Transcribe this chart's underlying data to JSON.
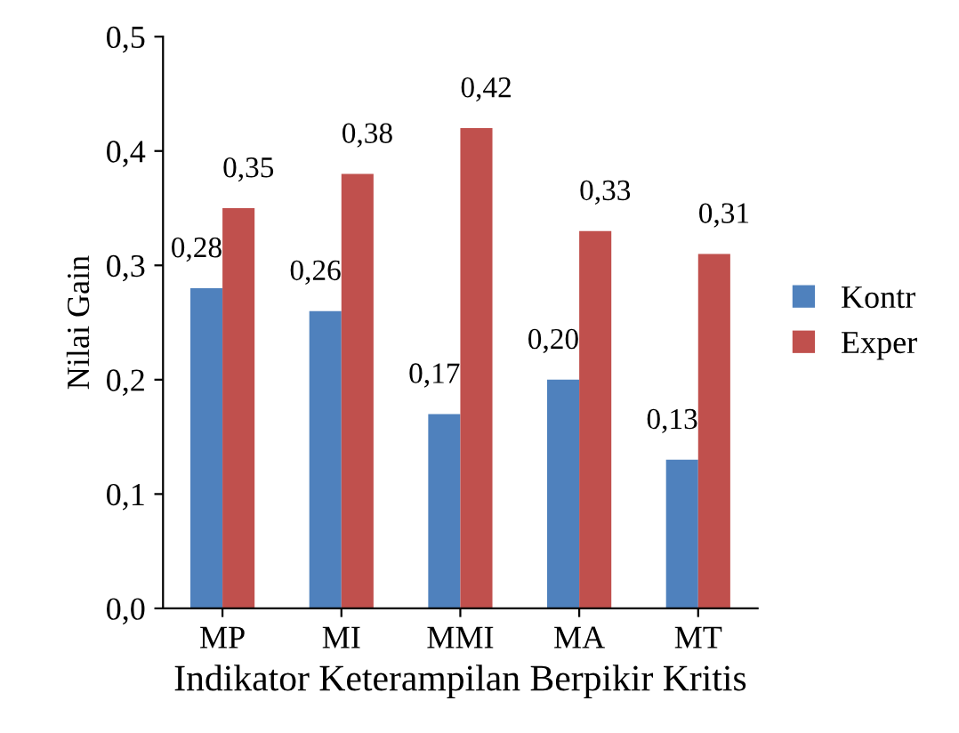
{
  "chart_data": {
    "type": "bar",
    "xlabel": "Indikator Keterampilan Berpikir Kritis",
    "ylabel": "Nilai Gain",
    "categories": [
      "MP",
      "MI",
      "MMI",
      "MA",
      "MT"
    ],
    "series": [
      {
        "name": "Kontr",
        "color": "#4f81bd",
        "values": [
          0.28,
          0.26,
          0.17,
          0.2,
          0.13
        ],
        "value_labels": [
          "0,28",
          "0,26",
          "0,17",
          "0,20",
          "0,13"
        ]
      },
      {
        "name": "Exper",
        "color": "#c0504d",
        "values": [
          0.35,
          0.38,
          0.42,
          0.33,
          0.31
        ],
        "value_labels": [
          "0,35",
          "0,38",
          "0,42",
          "0,33",
          "0,31"
        ]
      }
    ],
    "ylim": [
      0,
      0.5
    ],
    "yticks": [
      {
        "value": 0,
        "label": "0,0"
      },
      {
        "value": 0.1,
        "label": "0,1"
      },
      {
        "value": 0.2,
        "label": "0,2"
      },
      {
        "value": 0.3,
        "label": "0,3"
      },
      {
        "value": 0.4,
        "label": "0,4"
      },
      {
        "value": 0.5,
        "label": "0,5"
      }
    ],
    "grid": false,
    "legend": "right"
  }
}
